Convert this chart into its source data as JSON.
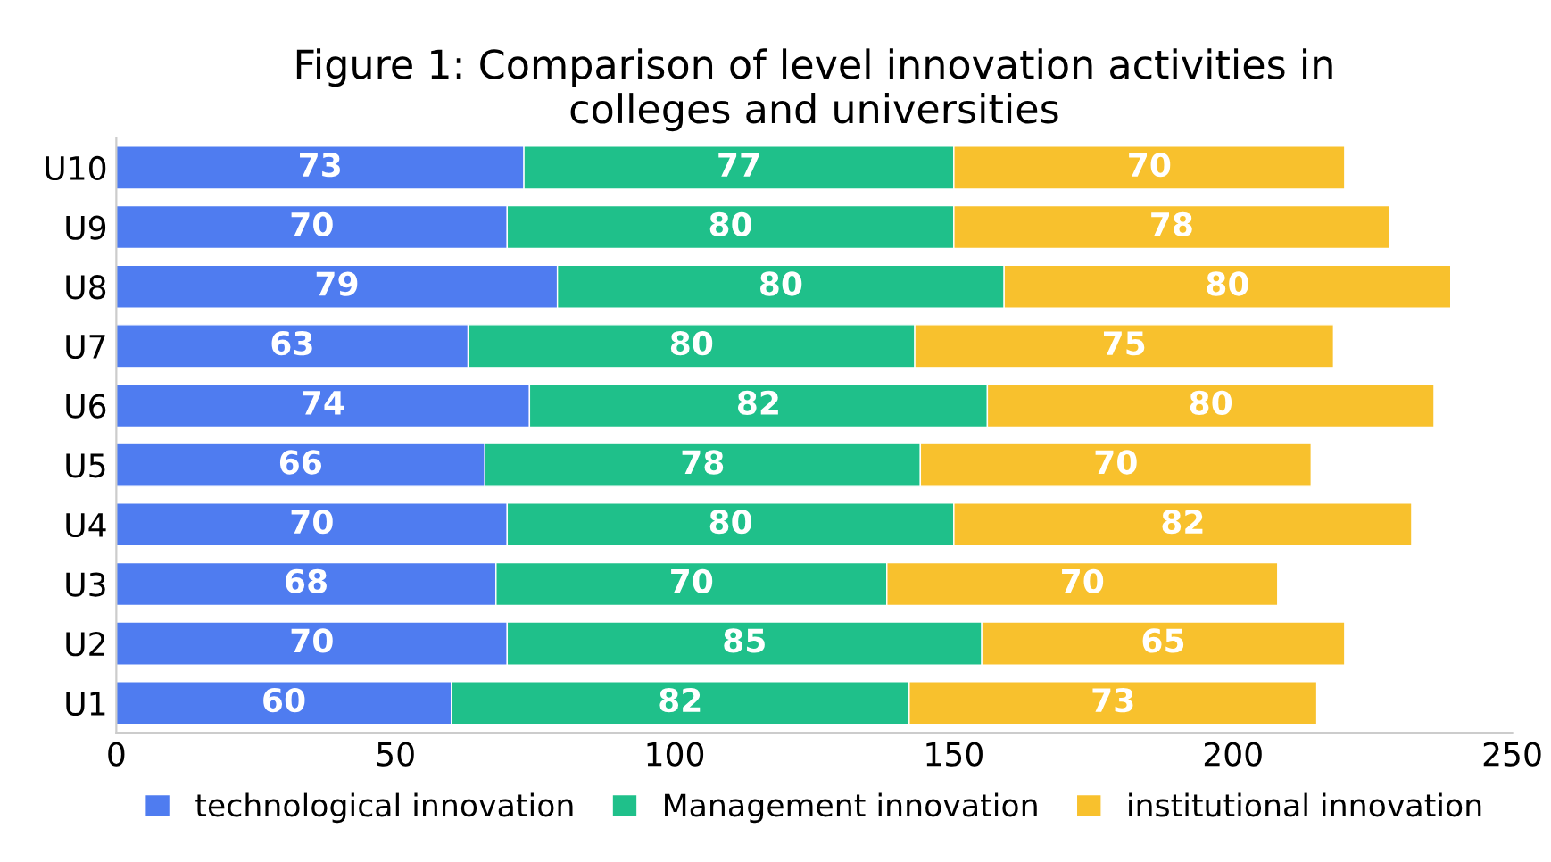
{
  "chart_data": {
    "type": "bar",
    "orientation": "horizontal",
    "stacked": true,
    "title": "Figure 1: Comparison of level innovation activities in\ncolleges and universities",
    "categories": [
      "U10",
      "U9",
      "U8",
      "U7",
      "U6",
      "U5",
      "U4",
      "U3",
      "U2",
      "U1"
    ],
    "series": [
      {
        "name": "technological innovation",
        "color": "#4f7cf0",
        "values": [
          73,
          70,
          79,
          63,
          74,
          66,
          70,
          68,
          70,
          60
        ]
      },
      {
        "name": "Management innovation",
        "color": "#1fc08a",
        "values": [
          77,
          80,
          80,
          80,
          82,
          78,
          80,
          70,
          85,
          82
        ]
      },
      {
        "name": "institutional innovation",
        "color": "#f8c12d",
        "values": [
          70,
          78,
          80,
          75,
          80,
          70,
          82,
          70,
          65,
          73
        ]
      }
    ],
    "xlim": [
      0,
      250
    ],
    "xticks": [
      0,
      50,
      100,
      150,
      200,
      250
    ],
    "grid": false,
    "legend": "bottom",
    "data_labels": true
  }
}
